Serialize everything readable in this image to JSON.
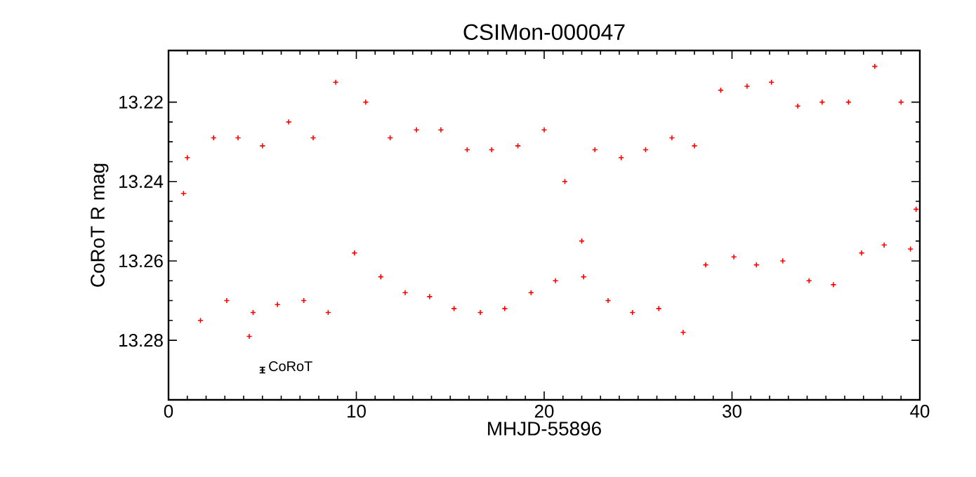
{
  "chart_data": {
    "type": "scatter",
    "title": "CSIMon-000047",
    "xlabel": "MHJD-55896",
    "ylabel": "CoRoT R mag",
    "xlim": [
      0,
      40
    ],
    "ylim": [
      13.295,
      13.207
    ],
    "xticks": [
      0,
      10,
      20,
      30,
      40
    ],
    "yticks": [
      13.22,
      13.24,
      13.26,
      13.28
    ],
    "marker": "cross",
    "grid": false,
    "series": [
      {
        "color": "#ff0000",
        "x": [
          0.8,
          1.0,
          1.7,
          2.4,
          3.1,
          3.7,
          4.3,
          4.5,
          5.0,
          5.8,
          6.4,
          7.2,
          7.7,
          8.5,
          8.9,
          9.9,
          10.5,
          11.3,
          11.8,
          12.6,
          13.2,
          13.9,
          14.5,
          15.2,
          15.9,
          16.6,
          17.2,
          17.9,
          18.6,
          19.3,
          20.0,
          20.6,
          21.1,
          22.0,
          22.1,
          22.7,
          23.4,
          24.1,
          24.7,
          25.4,
          26.1,
          26.8,
          27.4,
          28.0,
          28.6,
          29.4,
          30.1,
          30.8,
          31.3,
          32.1,
          32.7,
          33.5,
          34.1,
          34.8,
          35.4,
          36.2,
          36.9,
          37.6,
          38.1,
          39.0,
          39.5,
          39.8
        ],
        "values": [
          13.243,
          13.234,
          13.275,
          13.229,
          13.27,
          13.229,
          13.279,
          13.273,
          13.231,
          13.271,
          13.225,
          13.27,
          13.229,
          13.273,
          13.215,
          13.258,
          13.22,
          13.264,
          13.229,
          13.268,
          13.227,
          13.269,
          13.227,
          13.272,
          13.232,
          13.273,
          13.232,
          13.272,
          13.231,
          13.268,
          13.227,
          13.265,
          13.24,
          13.255,
          13.264,
          13.232,
          13.27,
          13.234,
          13.273,
          13.232,
          13.272,
          13.229,
          13.278,
          13.231,
          13.261,
          13.217,
          13.259,
          13.216,
          13.261,
          13.215,
          13.26,
          13.221,
          13.265,
          13.22,
          13.266,
          13.22,
          13.258,
          13.211,
          13.256,
          13.22,
          13.257,
          13.247
        ]
      },
      {
        "color": "#000000",
        "x": [
          5.0
        ],
        "values": [
          13.2875
        ],
        "errors": [
          0.0007
        ]
      }
    ],
    "annotations": [
      {
        "text": "CoRoT",
        "x": 5.0,
        "y": 13.2875
      }
    ]
  }
}
